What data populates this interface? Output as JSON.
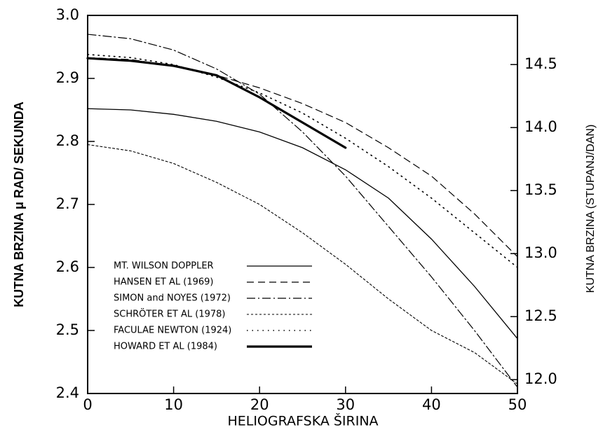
{
  "chart_data": {
    "type": "line",
    "x_label": "HELIOGRAFSKA ŠIRINA",
    "y_label": "KUTNA BRZINA μ RAD/ SEKUNDA",
    "y2_label": "KUTNA BRZINA (STUPANJ/DAN)",
    "x": [
      0,
      5,
      10,
      15,
      20,
      25,
      30,
      35,
      40,
      45,
      50
    ],
    "xlim": [
      0,
      50
    ],
    "xticks": [
      0,
      10,
      20,
      30,
      40,
      50
    ],
    "ylim": [
      2.4,
      3.0
    ],
    "yticks": [
      2.4,
      2.5,
      2.6,
      2.7,
      2.8,
      2.9,
      {
        "value": 3,
        "label": "3.0"
      }
    ],
    "y2lim": [
      11.89,
      14.89
    ],
    "y2ticks": [
      {
        "value": 12,
        "label": "12.0"
      },
      12.5,
      {
        "value": 13,
        "label": "13.0"
      },
      13.5,
      {
        "value": 14,
        "label": "14.0"
      },
      14.5
    ],
    "series": [
      {
        "name": "MT. WILSON DOPPLER",
        "color": "#000000",
        "dash": "none",
        "width": 1.3,
        "values": [
          2.852,
          2.85,
          2.843,
          2.832,
          2.815,
          2.79,
          2.755,
          2.71,
          2.645,
          2.57,
          2.487
        ]
      },
      {
        "name": "HANSEN ET AL (1969)",
        "color": "#000000",
        "dash": "10 6",
        "width": 1.2,
        "values": [
          2.933,
          2.93,
          2.92,
          2.905,
          2.885,
          2.86,
          2.83,
          2.79,
          2.745,
          2.685,
          2.617
        ]
      },
      {
        "name": "SIMON and NOYES (1972)",
        "color": "#000000",
        "dash": "12 4 2 4",
        "width": 1.2,
        "values": [
          2.97,
          2.963,
          2.945,
          2.915,
          2.875,
          2.815,
          2.745,
          2.665,
          2.585,
          2.5,
          2.41
        ]
      },
      {
        "name": "SCHRÖTER ET AL (1978)",
        "color": "#000000",
        "dash": "3 3",
        "width": 1.1,
        "values": [
          2.795,
          2.785,
          2.765,
          2.735,
          2.7,
          2.655,
          2.605,
          2.55,
          2.5,
          2.465,
          2.415
        ]
      },
      {
        "name": "FACULAE NEWTON (1924)",
        "color": "#000000",
        "dash": "1.5 6",
        "width": 1.6,
        "values": [
          2.938,
          2.933,
          2.922,
          2.902,
          2.877,
          2.845,
          2.805,
          2.76,
          2.71,
          2.655,
          2.6
        ]
      },
      {
        "name": "HOWARD ET AL (1984)",
        "color": "#000000",
        "dash": "none",
        "width": 3.2,
        "values": [
          2.932,
          2.928,
          2.92,
          2.905,
          2.87,
          2.83,
          2.79,
          null,
          null,
          null,
          null
        ]
      }
    ]
  }
}
